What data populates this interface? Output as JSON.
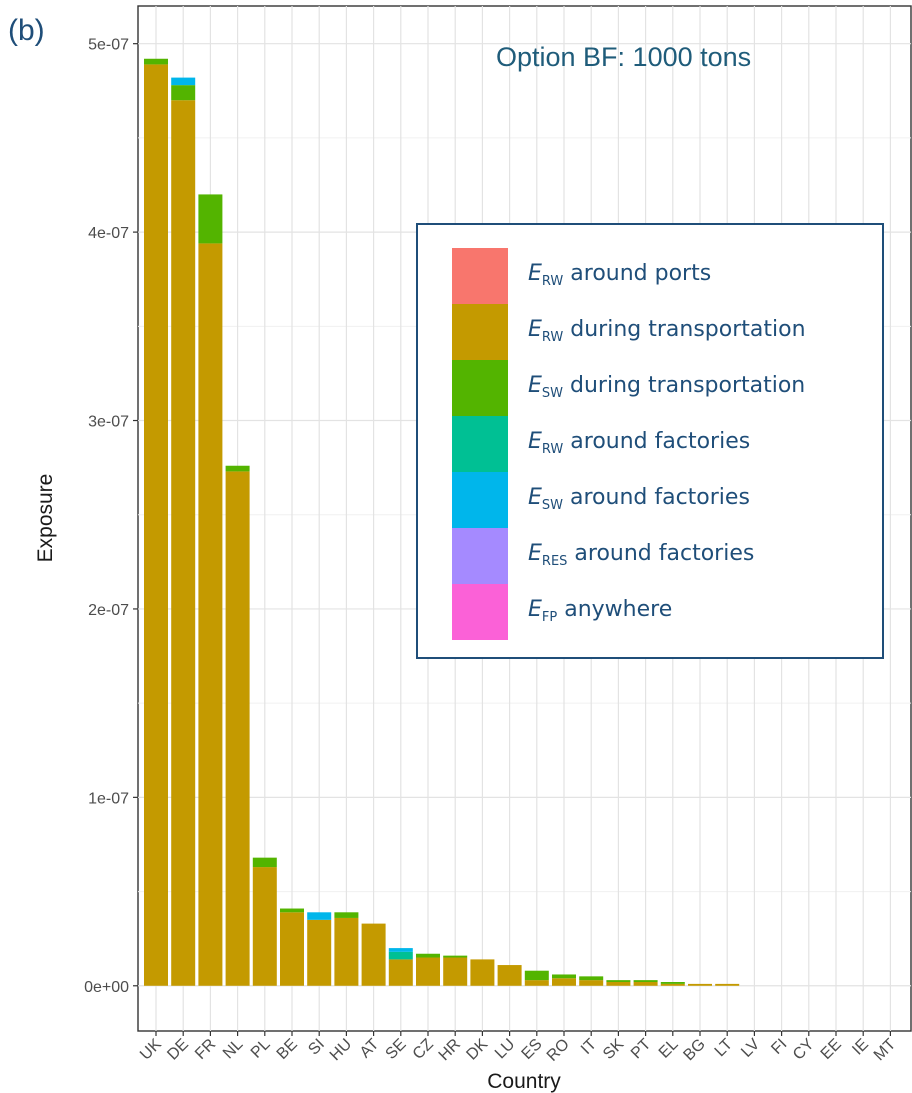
{
  "panel_label": "(b)",
  "chart_data": {
    "type": "bar",
    "stacked": true,
    "title": "Option BF: 1000 tons",
    "xlabel": "Country",
    "ylabel": "Exposure",
    "ylim": [
      -2.4e-08,
      5.2e-07
    ],
    "yticks": [
      0,
      1e-07,
      2e-07,
      3e-07,
      4e-07,
      5e-07
    ],
    "ytick_labels": [
      "0e+00",
      "1e-07",
      "2e-07",
      "3e-07",
      "4e-07",
      "5e-07"
    ],
    "grid": true,
    "legend_position": "right",
    "categories": [
      "UK",
      "DE",
      "FR",
      "NL",
      "PL",
      "BE",
      "SI",
      "HU",
      "AT",
      "SE",
      "CZ",
      "HR",
      "DK",
      "LU",
      "ES",
      "RO",
      "IT",
      "SK",
      "PT",
      "EL",
      "BG",
      "LT",
      "LV",
      "FI",
      "CY",
      "EE",
      "IE",
      "MT"
    ],
    "series": [
      {
        "name": "around ports",
        "symbol": "E",
        "sub": "RW",
        "color": "#F8766D",
        "values": [
          0,
          0,
          0,
          0,
          0,
          0,
          0,
          0,
          0,
          0,
          0,
          0,
          0,
          0,
          0,
          0,
          0,
          0,
          0,
          0,
          0,
          0,
          0,
          0,
          0,
          0,
          0,
          0
        ]
      },
      {
        "name": "during transportation",
        "symbol": "E",
        "sub": "RW",
        "color": "#C49A00",
        "values": [
          4.89e-07,
          4.7e-07,
          3.94e-07,
          2.73e-07,
          6.3e-08,
          3.9e-08,
          3.5e-08,
          3.6e-08,
          3.3e-08,
          1.4e-08,
          1.5e-08,
          1.5e-08,
          1.4e-08,
          1.1e-08,
          3e-09,
          4e-09,
          3e-09,
          2e-09,
          2e-09,
          1e-09,
          1e-09,
          1e-09,
          0,
          0,
          0,
          0,
          0,
          0
        ]
      },
      {
        "name": "during transportation",
        "symbol": "E",
        "sub": "SW",
        "color": "#53B400",
        "values": [
          3e-09,
          8e-09,
          2.6e-08,
          3e-09,
          5e-09,
          2e-09,
          0,
          3e-09,
          0,
          0,
          2e-09,
          1e-09,
          0,
          0,
          5e-09,
          2e-09,
          2e-09,
          1e-09,
          1e-09,
          1e-09,
          0,
          0,
          0,
          0,
          0,
          0,
          0,
          0
        ]
      },
      {
        "name": "around factories",
        "symbol": "E",
        "sub": "RW",
        "color": "#00C094",
        "values": [
          0,
          0,
          0,
          0,
          0,
          0,
          0,
          0,
          0,
          4e-09,
          0,
          0,
          0,
          0,
          0,
          0,
          0,
          0,
          0,
          0,
          0,
          0,
          0,
          0,
          0,
          0,
          0,
          0
        ]
      },
      {
        "name": "around factories",
        "symbol": "E",
        "sub": "SW",
        "color": "#00B6EB",
        "values": [
          0,
          4e-09,
          0,
          0,
          0,
          0,
          4e-09,
          0,
          0,
          2e-09,
          0,
          0,
          0,
          0,
          0,
          0,
          0,
          0,
          0,
          0,
          0,
          0,
          0,
          0,
          0,
          0,
          0,
          0
        ]
      },
      {
        "name": "around factories",
        "symbol": "E",
        "sub": "RES",
        "color": "#A58AFF",
        "values": [
          0,
          0,
          0,
          0,
          0,
          0,
          0,
          0,
          0,
          0,
          0,
          0,
          0,
          0,
          0,
          0,
          0,
          0,
          0,
          0,
          0,
          0,
          0,
          0,
          0,
          0,
          0,
          0
        ]
      },
      {
        "name": "anywhere",
        "symbol": "E",
        "sub": "FP",
        "color": "#FB61D7",
        "values": [
          0,
          0,
          0,
          0,
          0,
          0,
          0,
          0,
          0,
          0,
          0,
          0,
          0,
          0,
          0,
          0,
          0,
          0,
          0,
          0,
          0,
          0,
          0,
          0,
          0,
          0,
          0,
          0
        ]
      }
    ]
  }
}
